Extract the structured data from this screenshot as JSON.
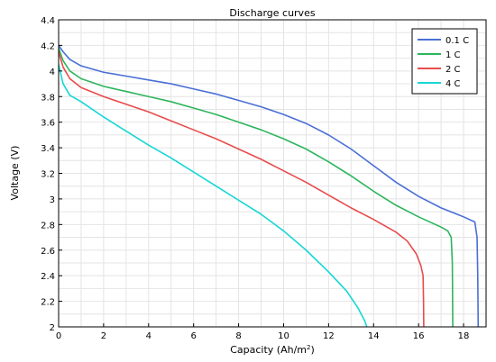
{
  "chart_data": {
    "type": "line",
    "title": "Discharge curves",
    "xlabel": "Capacity (Ah/m",
    "xlabel_sup": "2",
    "xlabel_end": ")",
    "ylabel": "Voltage (V)",
    "xlim": [
      0,
      19
    ],
    "ylim": [
      2,
      4.4
    ],
    "xticks": [
      0,
      2,
      4,
      6,
      8,
      10,
      12,
      14,
      16,
      18
    ],
    "yticks": [
      2,
      2.2,
      2.4,
      2.6,
      2.8,
      3,
      3.2,
      3.4,
      3.6,
      3.8,
      4,
      4.2,
      4.4
    ],
    "xtick_labels": [
      "0",
      "2",
      "4",
      "6",
      "8",
      "10",
      "12",
      "14",
      "16",
      "18"
    ],
    "ytick_labels": [
      "2",
      "2.2",
      "2.4",
      "2.6",
      "2.8",
      "3",
      "3.2",
      "3.4",
      "3.6",
      "3.8",
      "4",
      "4.2",
      "4.4"
    ],
    "grid": true,
    "legend_position": "top-right",
    "series": [
      {
        "name": "0.1 C",
        "color": "#4a6fd6",
        "points": [
          [
            0,
            4.2
          ],
          [
            0.2,
            4.15
          ],
          [
            0.5,
            4.09
          ],
          [
            1,
            4.04
          ],
          [
            2,
            3.99
          ],
          [
            3,
            3.96
          ],
          [
            4,
            3.93
          ],
          [
            5,
            3.9
          ],
          [
            6,
            3.86
          ],
          [
            7,
            3.82
          ],
          [
            8,
            3.77
          ],
          [
            9,
            3.72
          ],
          [
            10,
            3.66
          ],
          [
            11,
            3.59
          ],
          [
            12,
            3.5
          ],
          [
            13,
            3.39
          ],
          [
            14,
            3.26
          ],
          [
            15,
            3.13
          ],
          [
            16,
            3.02
          ],
          [
            17,
            2.93
          ],
          [
            18,
            2.86
          ],
          [
            18.5,
            2.82
          ],
          [
            18.6,
            2.7
          ],
          [
            18.63,
            2.4
          ],
          [
            18.65,
            2.0
          ]
        ]
      },
      {
        "name": "1 C",
        "color": "#2db55d",
        "points": [
          [
            0,
            4.18
          ],
          [
            0.2,
            4.08
          ],
          [
            0.5,
            4.0
          ],
          [
            1,
            3.94
          ],
          [
            2,
            3.88
          ],
          [
            3,
            3.84
          ],
          [
            4,
            3.8
          ],
          [
            5,
            3.76
          ],
          [
            6,
            3.71
          ],
          [
            7,
            3.66
          ],
          [
            8,
            3.6
          ],
          [
            9,
            3.54
          ],
          [
            10,
            3.47
          ],
          [
            11,
            3.39
          ],
          [
            12,
            3.29
          ],
          [
            13,
            3.18
          ],
          [
            14,
            3.06
          ],
          [
            15,
            2.95
          ],
          [
            16,
            2.86
          ],
          [
            17,
            2.78
          ],
          [
            17.3,
            2.75
          ],
          [
            17.45,
            2.7
          ],
          [
            17.5,
            2.5
          ],
          [
            17.52,
            2.0
          ]
        ]
      },
      {
        "name": "2 C",
        "color": "#e84c4c",
        "points": [
          [
            0,
            4.15
          ],
          [
            0.2,
            4.03
          ],
          [
            0.5,
            3.94
          ],
          [
            1,
            3.87
          ],
          [
            2,
            3.8
          ],
          [
            3,
            3.74
          ],
          [
            4,
            3.68
          ],
          [
            5,
            3.61
          ],
          [
            6,
            3.54
          ],
          [
            7,
            3.47
          ],
          [
            8,
            3.39
          ],
          [
            9,
            3.31
          ],
          [
            10,
            3.22
          ],
          [
            11,
            3.13
          ],
          [
            12,
            3.03
          ],
          [
            13,
            2.93
          ],
          [
            14,
            2.84
          ],
          [
            15,
            2.74
          ],
          [
            15.5,
            2.67
          ],
          [
            15.9,
            2.57
          ],
          [
            16.1,
            2.48
          ],
          [
            16.2,
            2.4
          ],
          [
            16.22,
            2.2
          ],
          [
            16.23,
            2.0
          ]
        ]
      },
      {
        "name": "4 C",
        "color": "#17d6d6",
        "points": [
          [
            0,
            4.05
          ],
          [
            0.2,
            3.9
          ],
          [
            0.5,
            3.81
          ],
          [
            1,
            3.76
          ],
          [
            2,
            3.64
          ],
          [
            3,
            3.53
          ],
          [
            4,
            3.42
          ],
          [
            5,
            3.32
          ],
          [
            6,
            3.21
          ],
          [
            7,
            3.1
          ],
          [
            8,
            2.99
          ],
          [
            9,
            2.88
          ],
          [
            10,
            2.75
          ],
          [
            11,
            2.6
          ],
          [
            12,
            2.43
          ],
          [
            12.8,
            2.28
          ],
          [
            13.3,
            2.15
          ],
          [
            13.6,
            2.05
          ],
          [
            13.7,
            2.0
          ]
        ]
      }
    ]
  }
}
